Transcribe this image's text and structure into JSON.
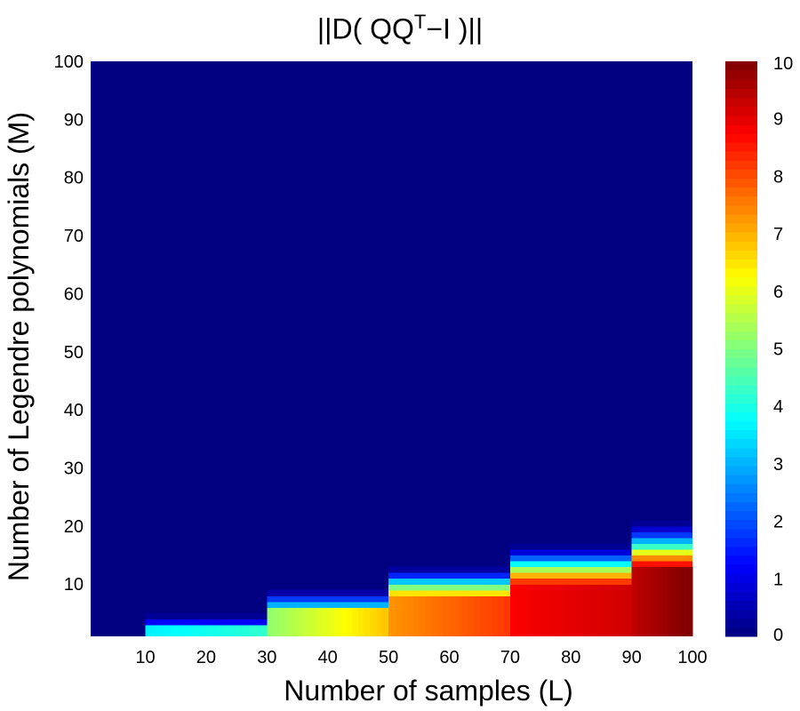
{
  "chart_data": {
    "type": "heatmap",
    "title": {
      "prefix": "||D( QQ",
      "superscript": "T",
      "suffix": "−I )||"
    },
    "xlabel": "Number of samples (L)",
    "ylabel": "Number of Legendre polynomials (M)",
    "xlim": [
      1,
      100
    ],
    "ylim": [
      1,
      100
    ],
    "x_ticks": [
      10,
      20,
      30,
      40,
      50,
      60,
      70,
      80,
      90,
      100
    ],
    "y_ticks": [
      10,
      20,
      30,
      40,
      50,
      60,
      70,
      80,
      90,
      100
    ],
    "colorbar": {
      "range": [
        0,
        10
      ],
      "ticks": [
        0,
        1,
        2,
        3,
        4,
        5,
        6,
        7,
        8,
        9,
        10
      ],
      "colormap": "jet"
    },
    "background_value": 0,
    "steps": [
      {
        "x": [
          10,
          30
        ],
        "transition_rows": [
          [
            3,
            1.2
          ],
          [
            4,
            0.2
          ]
        ],
        "value_range": [
          3.6,
          4.2
        ]
      },
      {
        "x": [
          30,
          50
        ],
        "transition_rows": [
          [
            6,
            3.0
          ],
          [
            7,
            1.8
          ],
          [
            8,
            0.4
          ]
        ],
        "value_range": [
          5.2,
          6.8
        ]
      },
      {
        "x": [
          50,
          70
        ],
        "transition_rows": [
          [
            8,
            6.5
          ],
          [
            9,
            5.0
          ],
          [
            10,
            3.2
          ],
          [
            11,
            1.6
          ],
          [
            12,
            0.3
          ]
        ],
        "value_range": [
          7.3,
          8.2
        ]
      },
      {
        "x": [
          70,
          90
        ],
        "transition_rows": [
          [
            10,
            8.2
          ],
          [
            11,
            7.0
          ],
          [
            12,
            5.4
          ],
          [
            13,
            3.8
          ],
          [
            14,
            2.2
          ],
          [
            15,
            0.9
          ],
          [
            16,
            0.2
          ]
        ],
        "value_range": [
          8.8,
          9.2
        ]
      },
      {
        "x": [
          90,
          100
        ],
        "transition_rows": [
          [
            13,
            8.6
          ],
          [
            14,
            7.4
          ],
          [
            15,
            6.0
          ],
          [
            16,
            4.3
          ],
          [
            17,
            3.0
          ],
          [
            18,
            1.8
          ],
          [
            19,
            0.8
          ],
          [
            20,
            0.2
          ]
        ],
        "value_range": [
          9.4,
          10.0
        ]
      }
    ]
  }
}
